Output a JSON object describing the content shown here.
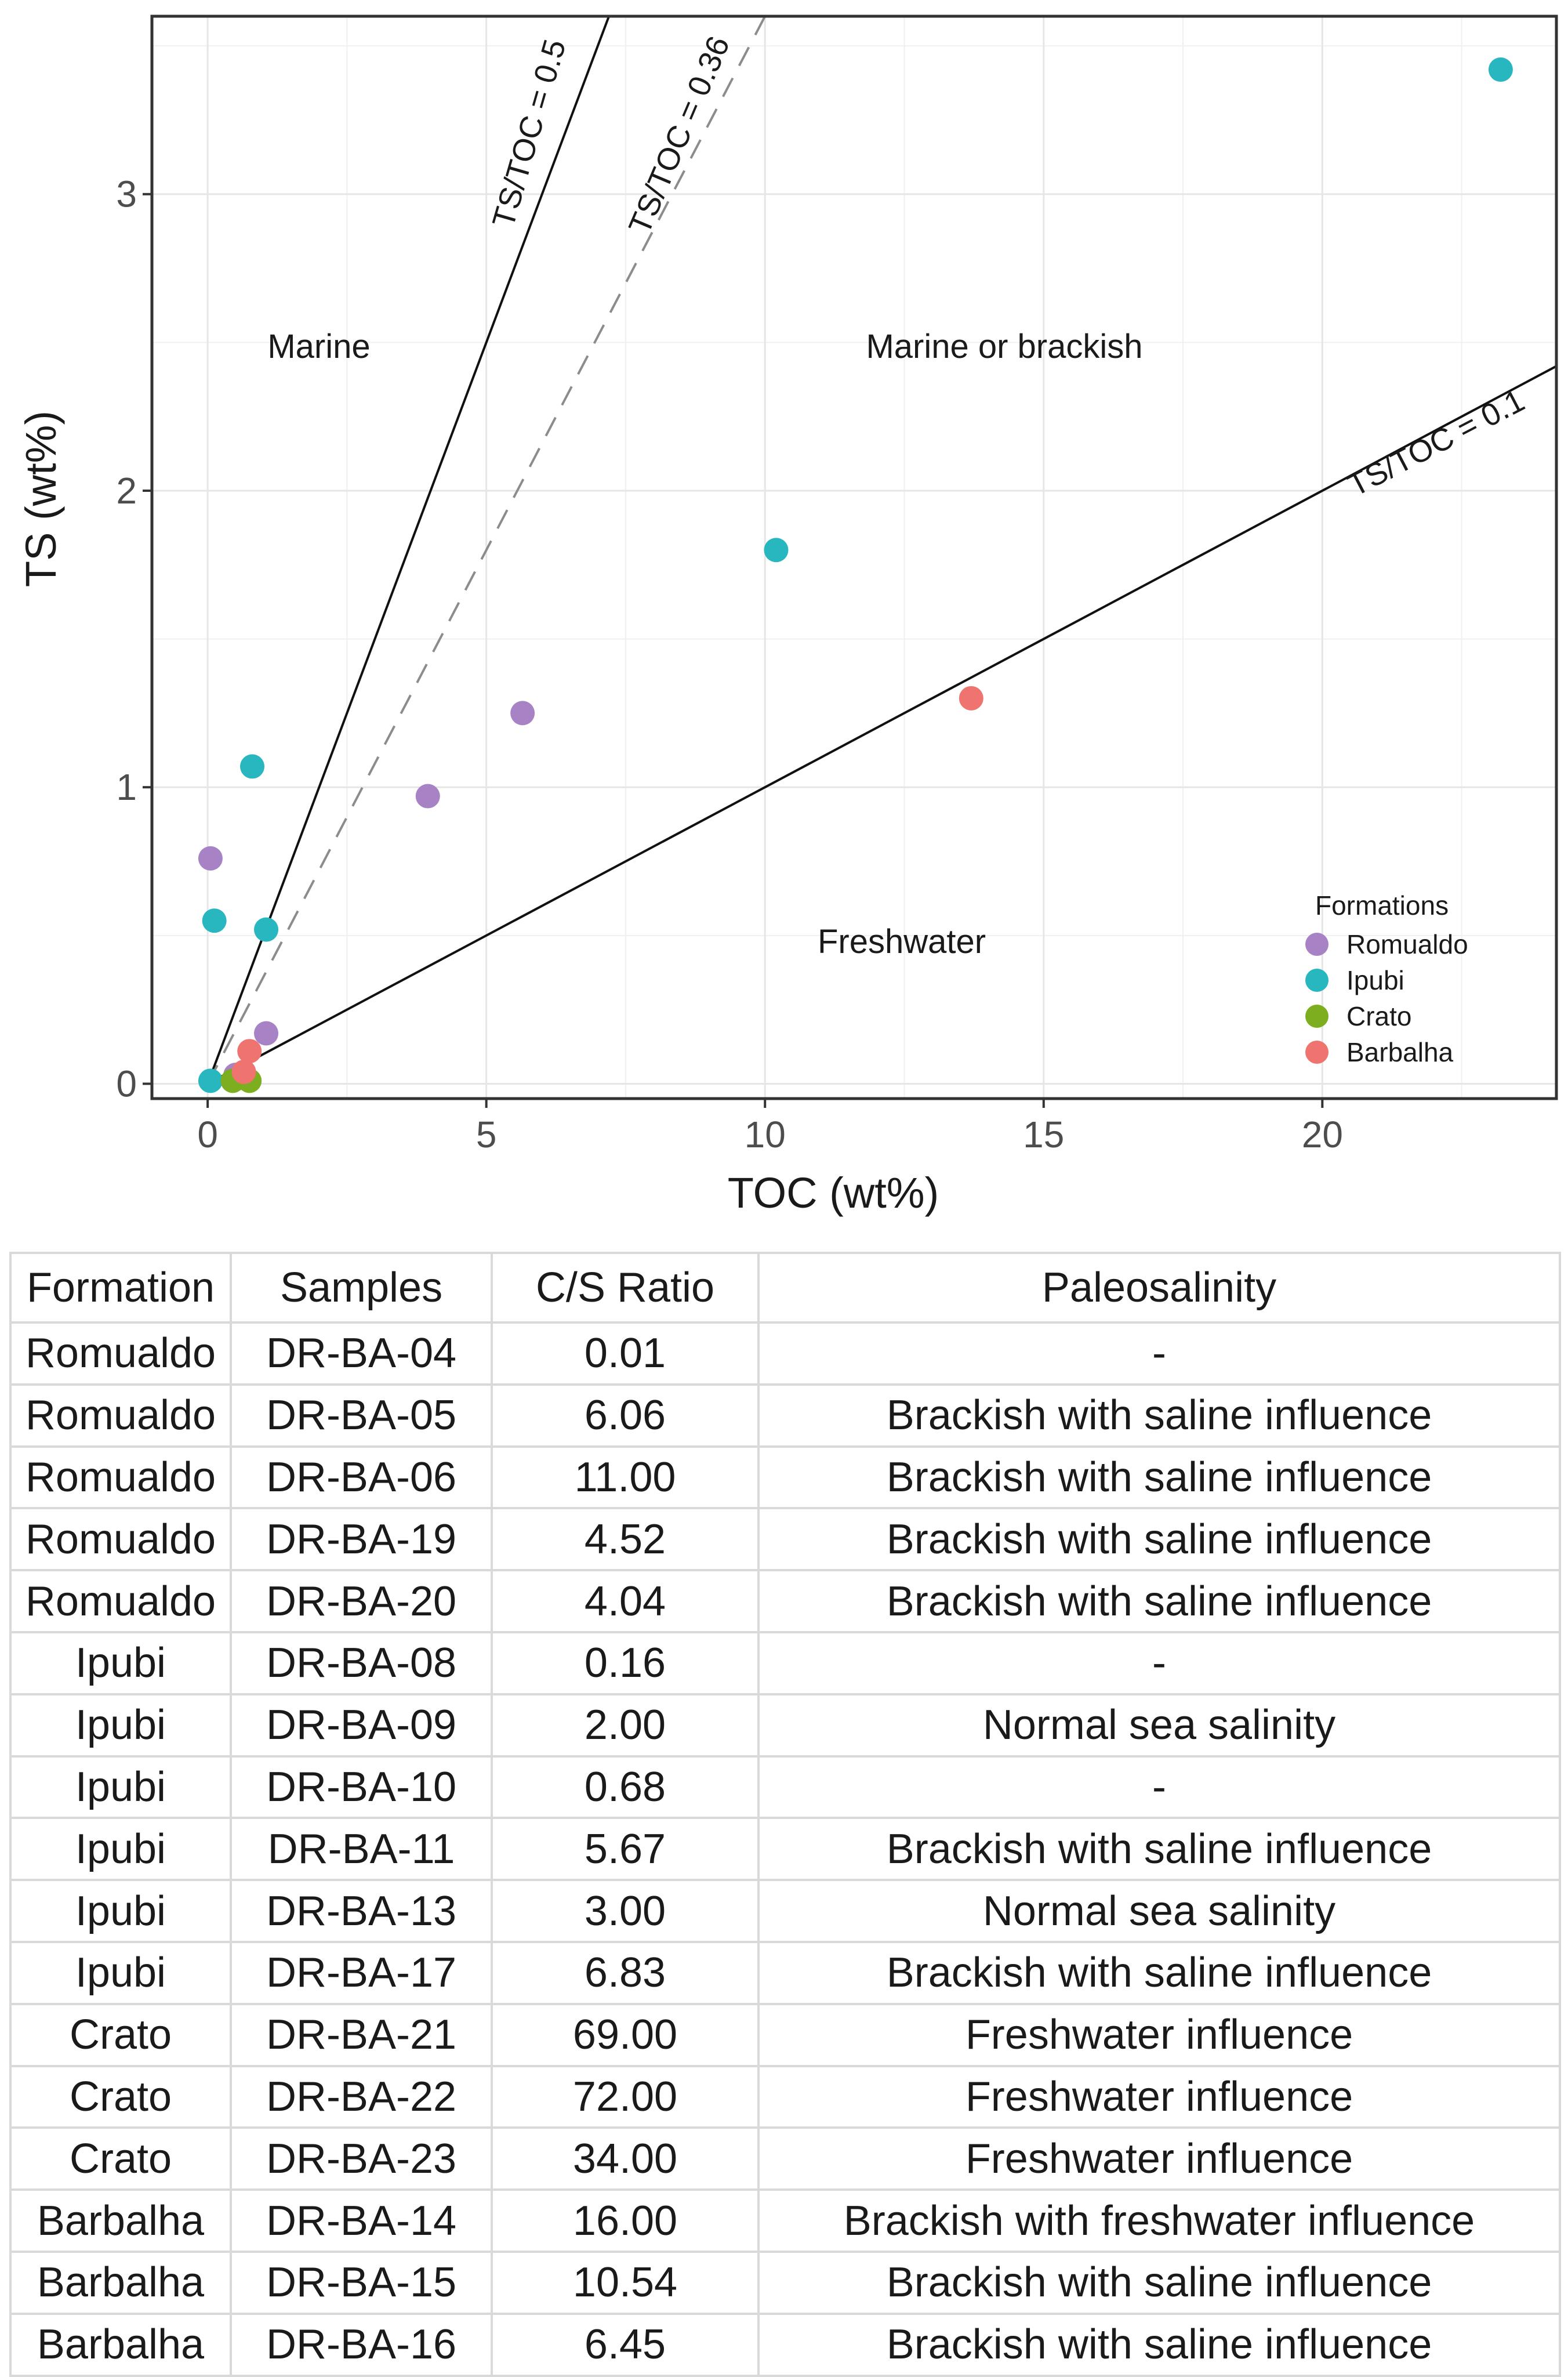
{
  "chart_data": {
    "type": "scatter",
    "xlabel": "TOC (wt%)",
    "ylabel": "TS (wt%)",
    "xlim": [
      -1,
      24.2
    ],
    "ylim": [
      -0.05,
      3.6
    ],
    "xticks": [
      0,
      5,
      10,
      15,
      20
    ],
    "yticks": [
      0,
      1,
      2,
      3
    ],
    "grid": true,
    "reference_lines": [
      {
        "label": "TS/TOC = 0.5",
        "slope": 0.5,
        "style": "solid"
      },
      {
        "label": "TS/TOC = 0.36",
        "slope": 0.36,
        "style": "dashed"
      },
      {
        "label": "TS/TOC = 0.1",
        "slope": 0.1,
        "style": "solid"
      }
    ],
    "region_labels": {
      "marine": "Marine",
      "marine_brackish": "Marine or brackish",
      "freshwater": "Freshwater"
    },
    "legend": {
      "title": "Formations",
      "position": "bottom-right"
    },
    "series": [
      {
        "name": "Romualdo",
        "color": "#a783c6",
        "points": [
          [
            0.05,
            0.76
          ],
          [
            1.05,
            0.17
          ],
          [
            3.95,
            0.97
          ],
          [
            5.65,
            1.25
          ],
          [
            0.5,
            0.03
          ]
        ]
      },
      {
        "name": "Ipubi",
        "color": "#28b6bf",
        "points": [
          [
            0.8,
            1.07
          ],
          [
            0.12,
            0.55
          ],
          [
            1.05,
            0.52
          ],
          [
            10.2,
            1.8
          ],
          [
            23.2,
            3.42
          ],
          [
            0.05,
            0.01
          ]
        ]
      },
      {
        "name": "Crato",
        "color": "#7cae1f",
        "points": [
          [
            0.45,
            0.01
          ],
          [
            0.6,
            0.02
          ],
          [
            0.75,
            0.01
          ]
        ]
      },
      {
        "name": "Barbalha",
        "color": "#ef7470",
        "points": [
          [
            0.75,
            0.11
          ],
          [
            13.7,
            1.3
          ],
          [
            0.65,
            0.04
          ]
        ]
      }
    ]
  },
  "table": {
    "headers": [
      "Formation",
      "Samples",
      "C/S Ratio",
      "Paleosalinity"
    ],
    "rows": [
      [
        "Romualdo",
        "DR-BA-04",
        "0.01",
        "-"
      ],
      [
        "Romualdo",
        "DR-BA-05",
        "6.06",
        "Brackish with saline influence"
      ],
      [
        "Romualdo",
        "DR-BA-06",
        "11.00",
        "Brackish with saline influence"
      ],
      [
        "Romualdo",
        "DR-BA-19",
        "4.52",
        "Brackish with saline influence"
      ],
      [
        "Romualdo",
        "DR-BA-20",
        "4.04",
        "Brackish with saline influence"
      ],
      [
        "Ipubi",
        "DR-BA-08",
        "0.16",
        "-"
      ],
      [
        "Ipubi",
        "DR-BA-09",
        "2.00",
        "Normal sea salinity"
      ],
      [
        "Ipubi",
        "DR-BA-10",
        "0.68",
        "-"
      ],
      [
        "Ipubi",
        "DR-BA-11",
        "5.67",
        "Brackish with saline influence"
      ],
      [
        "Ipubi",
        "DR-BA-13",
        "3.00",
        "Normal sea salinity"
      ],
      [
        "Ipubi",
        "DR-BA-17",
        "6.83",
        "Brackish with saline influence"
      ],
      [
        "Crato",
        "DR-BA-21",
        "69.00",
        "Freshwater influence"
      ],
      [
        "Crato",
        "DR-BA-22",
        "72.00",
        "Freshwater influence"
      ],
      [
        "Crato",
        "DR-BA-23",
        "34.00",
        "Freshwater influence"
      ],
      [
        "Barbalha",
        "DR-BA-14",
        "16.00",
        "Brackish with freshwater influence"
      ],
      [
        "Barbalha",
        "DR-BA-15",
        "10.54",
        "Brackish with saline influence"
      ],
      [
        "Barbalha",
        "DR-BA-16",
        "6.45",
        "Brackish with saline influence"
      ]
    ]
  }
}
